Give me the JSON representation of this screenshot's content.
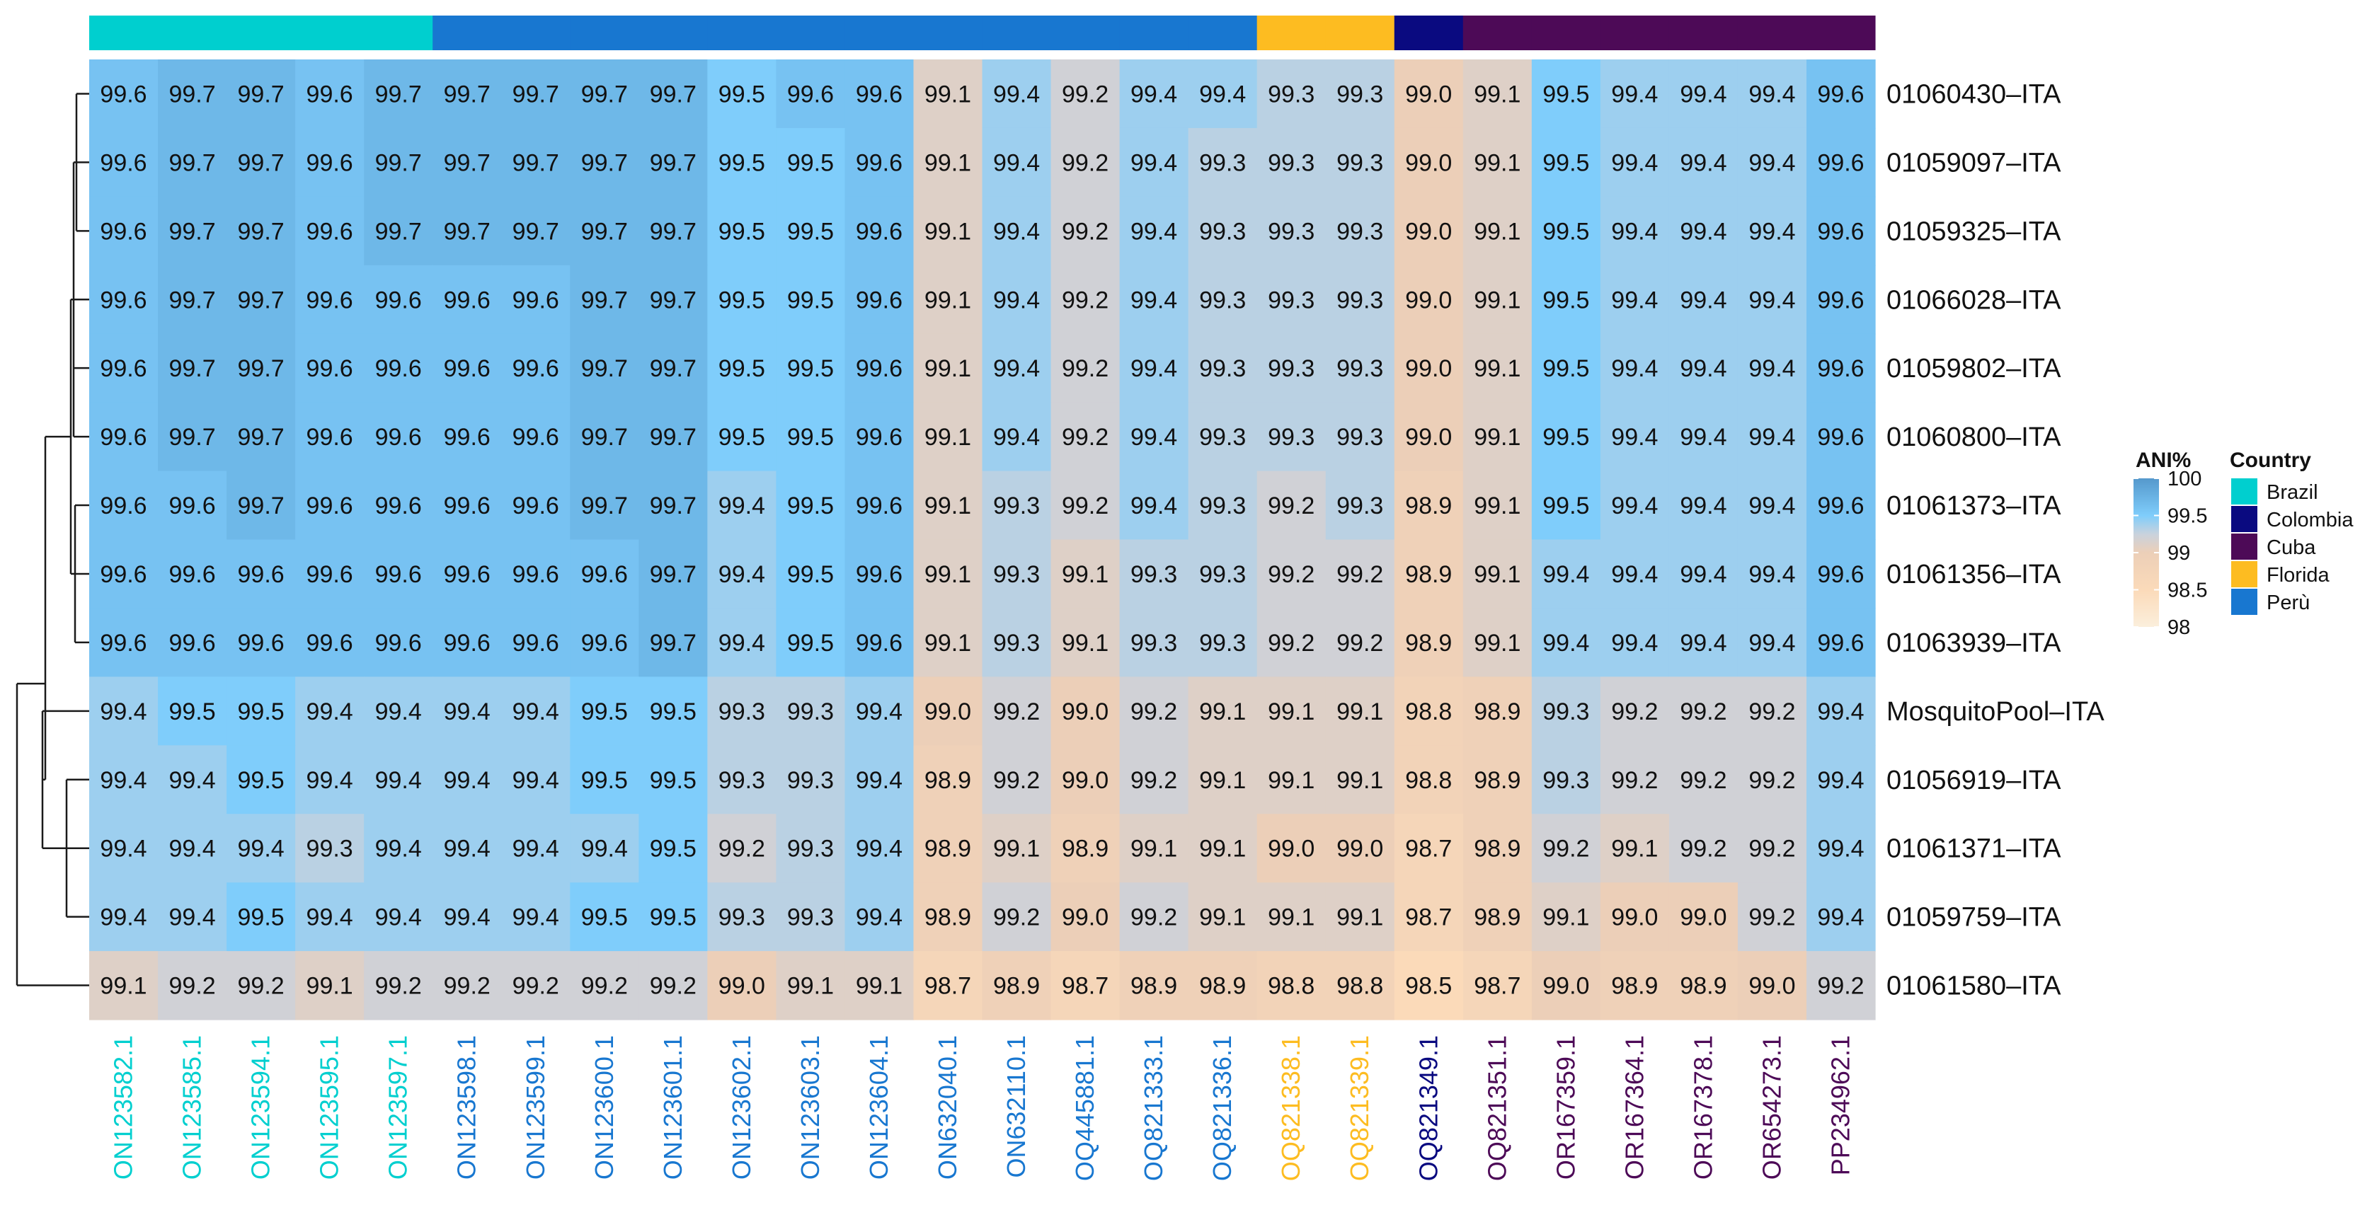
{
  "chart_data": {
    "type": "heatmap",
    "columns": [
      {
        "id": "ON123582.1",
        "country": "Brazil"
      },
      {
        "id": "ON123585.1",
        "country": "Brazil"
      },
      {
        "id": "ON123594.1",
        "country": "Brazil"
      },
      {
        "id": "ON123595.1",
        "country": "Brazil"
      },
      {
        "id": "ON123597.1",
        "country": "Brazil"
      },
      {
        "id": "ON123598.1",
        "country": "Perù"
      },
      {
        "id": "ON123599.1",
        "country": "Perù"
      },
      {
        "id": "ON123600.1",
        "country": "Perù"
      },
      {
        "id": "ON123601.1",
        "country": "Perù"
      },
      {
        "id": "ON123602.1",
        "country": "Perù"
      },
      {
        "id": "ON123603.1",
        "country": "Perù"
      },
      {
        "id": "ON123604.1",
        "country": "Perù"
      },
      {
        "id": "ON632040.1",
        "country": "Perù"
      },
      {
        "id": "ON632110.1",
        "country": "Perù"
      },
      {
        "id": "OQ445881.1",
        "country": "Perù"
      },
      {
        "id": "OQ821333.1",
        "country": "Perù"
      },
      {
        "id": "OQ821336.1",
        "country": "Perù"
      },
      {
        "id": "OQ821338.1",
        "country": "Florida"
      },
      {
        "id": "OQ821339.1",
        "country": "Florida"
      },
      {
        "id": "OQ821349.1",
        "country": "Colombia"
      },
      {
        "id": "OQ821351.1",
        "country": "Cuba"
      },
      {
        "id": "OR167359.1",
        "country": "Cuba"
      },
      {
        "id": "OR167364.1",
        "country": "Cuba"
      },
      {
        "id": "OR167378.1",
        "country": "Cuba"
      },
      {
        "id": "OR654273.1",
        "country": "Cuba"
      },
      {
        "id": "PP234962.1",
        "country": "Cuba"
      }
    ],
    "rows": [
      "01060430–ITA",
      "01059097–ITA",
      "01059325–ITA",
      "01066028–ITA",
      "01059802–ITA",
      "01060800–ITA",
      "01061373–ITA",
      "01061356–ITA",
      "01063939–ITA",
      "MosquitoPool–ITA",
      "01056919–ITA",
      "01061371–ITA",
      "01059759–ITA",
      "01061580–ITA"
    ],
    "values": [
      [
        99.6,
        99.7,
        99.7,
        99.6,
        99.7,
        99.7,
        99.7,
        99.7,
        99.7,
        99.5,
        99.6,
        99.6,
        99.1,
        99.4,
        99.2,
        99.4,
        99.4,
        99.3,
        99.3,
        99.0,
        99.1,
        99.5,
        99.4,
        99.4,
        99.4,
        99.6
      ],
      [
        99.6,
        99.7,
        99.7,
        99.6,
        99.7,
        99.7,
        99.7,
        99.7,
        99.7,
        99.5,
        99.5,
        99.6,
        99.1,
        99.4,
        99.2,
        99.4,
        99.3,
        99.3,
        99.3,
        99.0,
        99.1,
        99.5,
        99.4,
        99.4,
        99.4,
        99.6
      ],
      [
        99.6,
        99.7,
        99.7,
        99.6,
        99.7,
        99.7,
        99.7,
        99.7,
        99.7,
        99.5,
        99.5,
        99.6,
        99.1,
        99.4,
        99.2,
        99.4,
        99.3,
        99.3,
        99.3,
        99.0,
        99.1,
        99.5,
        99.4,
        99.4,
        99.4,
        99.6
      ],
      [
        99.6,
        99.7,
        99.7,
        99.6,
        99.6,
        99.6,
        99.6,
        99.7,
        99.7,
        99.5,
        99.5,
        99.6,
        99.1,
        99.4,
        99.2,
        99.4,
        99.3,
        99.3,
        99.3,
        99.0,
        99.1,
        99.5,
        99.4,
        99.4,
        99.4,
        99.6
      ],
      [
        99.6,
        99.7,
        99.7,
        99.6,
        99.6,
        99.6,
        99.6,
        99.7,
        99.7,
        99.5,
        99.5,
        99.6,
        99.1,
        99.4,
        99.2,
        99.4,
        99.3,
        99.3,
        99.3,
        99.0,
        99.1,
        99.5,
        99.4,
        99.4,
        99.4,
        99.6
      ],
      [
        99.6,
        99.7,
        99.7,
        99.6,
        99.6,
        99.6,
        99.6,
        99.7,
        99.7,
        99.5,
        99.5,
        99.6,
        99.1,
        99.4,
        99.2,
        99.4,
        99.3,
        99.3,
        99.3,
        99.0,
        99.1,
        99.5,
        99.4,
        99.4,
        99.4,
        99.6
      ],
      [
        99.6,
        99.6,
        99.7,
        99.6,
        99.6,
        99.6,
        99.6,
        99.7,
        99.7,
        99.4,
        99.5,
        99.6,
        99.1,
        99.3,
        99.2,
        99.4,
        99.3,
        99.2,
        99.3,
        98.9,
        99.1,
        99.5,
        99.4,
        99.4,
        99.4,
        99.6
      ],
      [
        99.6,
        99.6,
        99.6,
        99.6,
        99.6,
        99.6,
        99.6,
        99.6,
        99.7,
        99.4,
        99.5,
        99.6,
        99.1,
        99.3,
        99.1,
        99.3,
        99.3,
        99.2,
        99.2,
        98.9,
        99.1,
        99.4,
        99.4,
        99.4,
        99.4,
        99.6
      ],
      [
        99.6,
        99.6,
        99.6,
        99.6,
        99.6,
        99.6,
        99.6,
        99.6,
        99.7,
        99.4,
        99.5,
        99.6,
        99.1,
        99.3,
        99.1,
        99.3,
        99.3,
        99.2,
        99.2,
        98.9,
        99.1,
        99.4,
        99.4,
        99.4,
        99.4,
        99.6
      ],
      [
        99.4,
        99.5,
        99.5,
        99.4,
        99.4,
        99.4,
        99.4,
        99.5,
        99.5,
        99.3,
        99.3,
        99.4,
        99.0,
        99.2,
        99.0,
        99.2,
        99.1,
        99.1,
        99.1,
        98.8,
        98.9,
        99.3,
        99.2,
        99.2,
        99.2,
        99.4
      ],
      [
        99.4,
        99.4,
        99.5,
        99.4,
        99.4,
        99.4,
        99.4,
        99.5,
        99.5,
        99.3,
        99.3,
        99.4,
        98.9,
        99.2,
        99.0,
        99.2,
        99.1,
        99.1,
        99.1,
        98.8,
        98.9,
        99.3,
        99.2,
        99.2,
        99.2,
        99.4
      ],
      [
        99.4,
        99.4,
        99.4,
        99.3,
        99.4,
        99.4,
        99.4,
        99.4,
        99.5,
        99.2,
        99.3,
        99.4,
        98.9,
        99.1,
        98.9,
        99.1,
        99.1,
        99.0,
        99.0,
        98.7,
        98.9,
        99.2,
        99.1,
        99.2,
        99.2,
        99.4
      ],
      [
        99.4,
        99.4,
        99.5,
        99.4,
        99.4,
        99.4,
        99.4,
        99.5,
        99.5,
        99.3,
        99.3,
        99.4,
        98.9,
        99.2,
        99.0,
        99.2,
        99.1,
        99.1,
        99.1,
        98.7,
        98.9,
        99.1,
        99.0,
        99.0,
        99.2,
        99.4
      ],
      [
        99.1,
        99.2,
        99.2,
        99.1,
        99.2,
        99.2,
        99.2,
        99.2,
        99.2,
        99.0,
        99.1,
        99.1,
        98.7,
        98.9,
        98.7,
        98.9,
        98.9,
        98.8,
        98.8,
        98.5,
        98.7,
        99.0,
        98.9,
        98.9,
        99.0,
        99.2
      ]
    ],
    "value_format": "one decimal",
    "color_scale": {
      "title": "ANI%",
      "ticks": [
        "100",
        "99.5",
        "99",
        "98.5",
        "98"
      ],
      "domain": [
        98,
        100
      ],
      "stops": [
        {
          "value": 98.0,
          "color": "#fbefdc"
        },
        {
          "value": 98.5,
          "color": "#fbdab9"
        },
        {
          "value": 99.0,
          "color": "#eccfb8"
        },
        {
          "value": 99.25,
          "color": "#c9d2dd"
        },
        {
          "value": 99.5,
          "color": "#7fcdfb"
        },
        {
          "value": 100.0,
          "color": "#5598cc"
        }
      ]
    },
    "country_legend": {
      "title": "Country",
      "items": [
        {
          "label": "Brazil",
          "key": "Brazil",
          "color": "#00cfcf"
        },
        {
          "label": "Colombia",
          "key": "Colombia",
          "color": "#0a0a80"
        },
        {
          "label": "Cuba",
          "key": "Cuba",
          "color": "#4d0a57"
        },
        {
          "label": "Florida",
          "key": "Florida",
          "color": "#fdbc21"
        },
        {
          "label": "Perù",
          "key": "Perù",
          "color": "#1877d0"
        }
      ]
    },
    "dendrogram": "row clustering tree on left",
    "legend_position": "right"
  }
}
